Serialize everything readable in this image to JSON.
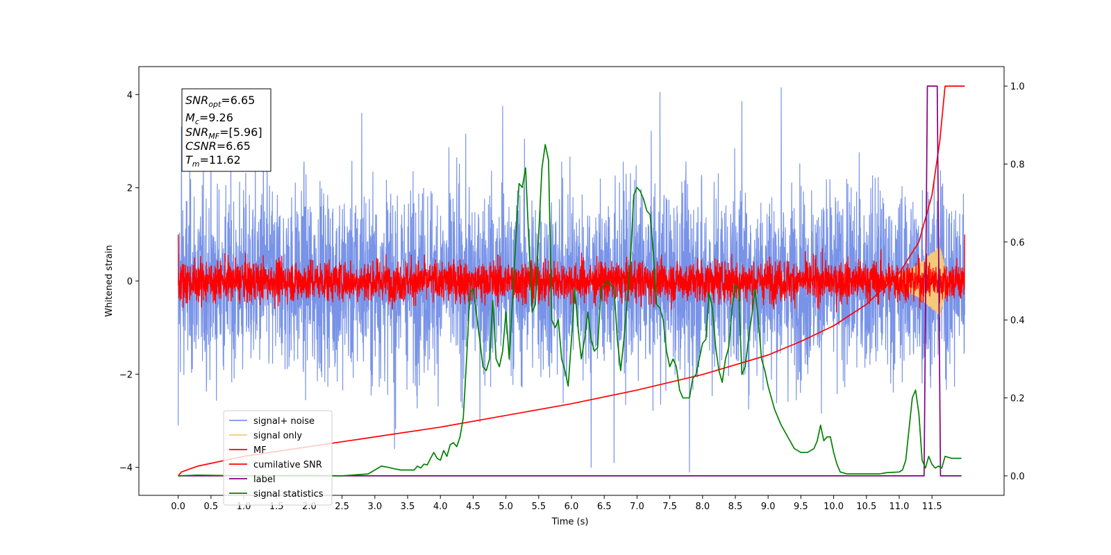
{
  "chart_data": {
    "type": "line",
    "title": "",
    "xlabel": "Time (s)",
    "ylabel": "Whitened strain",
    "xlim": [
      -0.6,
      12.6
    ],
    "ylim": [
      -4.6,
      4.6
    ],
    "y2lim": [
      -0.05,
      1.05
    ],
    "x_ticks": [
      "0.0",
      "0.5",
      "1.0",
      "1.5",
      "2.0",
      "2.5",
      "3.0",
      "3.5",
      "4.0",
      "4.5",
      "5.0",
      "5.5",
      "6.0",
      "6.5",
      "7.0",
      "7.5",
      "8.0",
      "8.5",
      "9.0",
      "9.5",
      "10.0",
      "10.5",
      "11.0",
      "11.5"
    ],
    "y_ticks": [
      "4",
      "2",
      "0",
      "−2",
      "−4"
    ],
    "y2_ticks": [
      "1.0",
      "0.8",
      "0.6",
      "0.4",
      "0.2",
      "0.0"
    ],
    "grid": false,
    "legend_position": "lower-left",
    "annotation": {
      "snr_opt": {
        "base": "SNR",
        "sub": "opt",
        "value": "=6.65"
      },
      "mc": {
        "base": "M",
        "sub": "c",
        "value": "=9.26"
      },
      "snr_mf": {
        "base": "SNR",
        "sub": "MF",
        "value": "=[5.96]"
      },
      "csnr": {
        "base": "CSNR",
        "sub": "",
        "value": "=6.65"
      },
      "tm": {
        "base": "T",
        "sub": "m",
        "value": "=11.62"
      }
    },
    "series": [
      {
        "name": "signal+ noise",
        "color": "#7893E8",
        "axis": "left",
        "kind": "noise",
        "x_range": [
          0.0,
          12.0
        ],
        "amplitude_envelope": [
          [
            0.0,
            1.0
          ],
          [
            12.0,
            1.0
          ]
        ],
        "peaks_high": [
          [
            0.05,
            3.3
          ],
          [
            1.3,
            3.6
          ],
          [
            2.8,
            3.6
          ],
          [
            4.95,
            3.75
          ],
          [
            7.35,
            4.05
          ],
          [
            8.6,
            3.85
          ],
          [
            9.2,
            4.15
          ]
        ],
        "peaks_low": [
          [
            0.0,
            -3.1
          ],
          [
            3.3,
            -3.6
          ],
          [
            6.3,
            -4.0
          ],
          [
            6.65,
            -3.9
          ],
          [
            7.8,
            -4.1
          ]
        ]
      },
      {
        "name": "signal only",
        "color": "#F5C97A",
        "axis": "left",
        "kind": "chirp",
        "x_range": [
          10.5,
          11.75
        ],
        "amplitude_envelope": [
          [
            10.5,
            0.05
          ],
          [
            11.0,
            0.15
          ],
          [
            11.3,
            0.35
          ],
          [
            11.62,
            0.75
          ],
          [
            11.75,
            0.0
          ]
        ]
      },
      {
        "name": "MF",
        "color": "#FF0000",
        "axis": "left",
        "kind": "noise",
        "x_range": [
          0.0,
          12.0
        ],
        "amplitude_envelope": [
          [
            0.0,
            0.22
          ],
          [
            12.0,
            0.22
          ]
        ],
        "endpoint_values": [
          1.0,
          1.0
        ]
      },
      {
        "name": "cumilative SNR",
        "color": "#FF0000",
        "axis": "right",
        "x": [
          0.0,
          0.05,
          0.3,
          1.0,
          2.0,
          3.0,
          4.0,
          5.0,
          6.0,
          7.0,
          8.0,
          9.0,
          9.5,
          10.0,
          10.5,
          11.0,
          11.3,
          11.5,
          11.62,
          11.7,
          12.0
        ],
        "y": [
          0.0,
          0.01,
          0.025,
          0.05,
          0.075,
          0.1,
          0.125,
          0.155,
          0.185,
          0.22,
          0.26,
          0.31,
          0.345,
          0.385,
          0.44,
          0.52,
          0.6,
          0.72,
          0.86,
          1.0,
          1.0
        ]
      },
      {
        "name": "label",
        "color": "#800080",
        "axis": "right",
        "x": [
          0.0,
          11.38,
          11.43,
          11.58,
          11.63,
          11.95
        ],
        "y": [
          0.0,
          0.0,
          1.0,
          1.0,
          0.0,
          0.0
        ]
      },
      {
        "name": "signal statistics",
        "color": "#008000",
        "axis": "right",
        "x": [
          0.0,
          0.3,
          1.0,
          2.0,
          2.5,
          2.9,
          3.0,
          3.1,
          3.2,
          3.3,
          3.4,
          3.6,
          3.65,
          3.7,
          3.75,
          3.8,
          3.85,
          3.9,
          3.95,
          4.0,
          4.05,
          4.1,
          4.15,
          4.2,
          4.25,
          4.3,
          4.35,
          4.4,
          4.45,
          4.5,
          4.6,
          4.65,
          4.7,
          4.75,
          4.8,
          4.85,
          4.9,
          4.95,
          5.0,
          5.05,
          5.1,
          5.15,
          5.2,
          5.25,
          5.3,
          5.35,
          5.4,
          5.45,
          5.5,
          5.55,
          5.6,
          5.65,
          5.7,
          5.75,
          5.8,
          5.85,
          5.9,
          5.95,
          6.0,
          6.05,
          6.1,
          6.15,
          6.2,
          6.25,
          6.3,
          6.35,
          6.4,
          6.45,
          6.5,
          6.55,
          6.6,
          6.65,
          6.7,
          6.75,
          6.8,
          6.85,
          6.9,
          6.95,
          7.0,
          7.05,
          7.1,
          7.15,
          7.2,
          7.25,
          7.3,
          7.35,
          7.4,
          7.45,
          7.5,
          7.55,
          7.6,
          7.65,
          7.7,
          7.75,
          7.8,
          7.85,
          7.9,
          7.95,
          8.0,
          8.05,
          8.1,
          8.15,
          8.2,
          8.25,
          8.3,
          8.35,
          8.4,
          8.45,
          8.5,
          8.55,
          8.6,
          8.65,
          8.7,
          8.75,
          8.8,
          8.85,
          8.9,
          8.95,
          9.0,
          9.05,
          9.1,
          9.2,
          9.3,
          9.4,
          9.5,
          9.6,
          9.7,
          9.75,
          9.8,
          9.85,
          9.9,
          9.95,
          10.0,
          10.05,
          10.1,
          10.2,
          10.5,
          10.7,
          10.8,
          11.0,
          11.05,
          11.1,
          11.15,
          11.2,
          11.25,
          11.3,
          11.35,
          11.4,
          11.45,
          11.5,
          11.55,
          11.6,
          11.65,
          11.7,
          11.8,
          11.95
        ],
        "y": [
          0.0,
          0.002,
          0.0,
          0.001,
          0.0,
          0.005,
          0.015,
          0.025,
          0.022,
          0.018,
          0.015,
          0.015,
          0.025,
          0.02,
          0.03,
          0.028,
          0.045,
          0.06,
          0.045,
          0.04,
          0.065,
          0.05,
          0.08,
          0.085,
          0.075,
          0.1,
          0.15,
          0.3,
          0.47,
          0.48,
          0.35,
          0.28,
          0.27,
          0.3,
          0.45,
          0.3,
          0.28,
          0.32,
          0.42,
          0.3,
          0.45,
          0.6,
          0.75,
          0.74,
          0.79,
          0.6,
          0.42,
          0.44,
          0.62,
          0.79,
          0.85,
          0.81,
          0.4,
          0.38,
          0.4,
          0.3,
          0.27,
          0.23,
          0.35,
          0.48,
          0.38,
          0.3,
          0.35,
          0.42,
          0.35,
          0.32,
          0.33,
          0.48,
          0.49,
          0.5,
          0.49,
          0.48,
          0.35,
          0.27,
          0.35,
          0.45,
          0.55,
          0.72,
          0.74,
          0.73,
          0.71,
          0.68,
          0.67,
          0.57,
          0.44,
          0.43,
          0.4,
          0.32,
          0.28,
          0.3,
          0.28,
          0.22,
          0.2,
          0.2,
          0.2,
          0.25,
          0.26,
          0.3,
          0.34,
          0.35,
          0.47,
          0.43,
          0.33,
          0.27,
          0.24,
          0.3,
          0.33,
          0.43,
          0.49,
          0.48,
          0.26,
          0.28,
          0.35,
          0.41,
          0.48,
          0.4,
          0.3,
          0.27,
          0.23,
          0.2,
          0.17,
          0.13,
          0.1,
          0.07,
          0.06,
          0.06,
          0.07,
          0.09,
          0.13,
          0.09,
          0.1,
          0.1,
          0.06,
          0.03,
          0.01,
          0.005,
          0.005,
          0.005,
          0.008,
          0.01,
          0.015,
          0.04,
          0.12,
          0.2,
          0.22,
          0.16,
          0.04,
          0.02,
          0.05,
          0.03,
          0.02,
          0.025,
          0.02,
          0.05,
          0.045,
          0.045
        ]
      }
    ]
  }
}
